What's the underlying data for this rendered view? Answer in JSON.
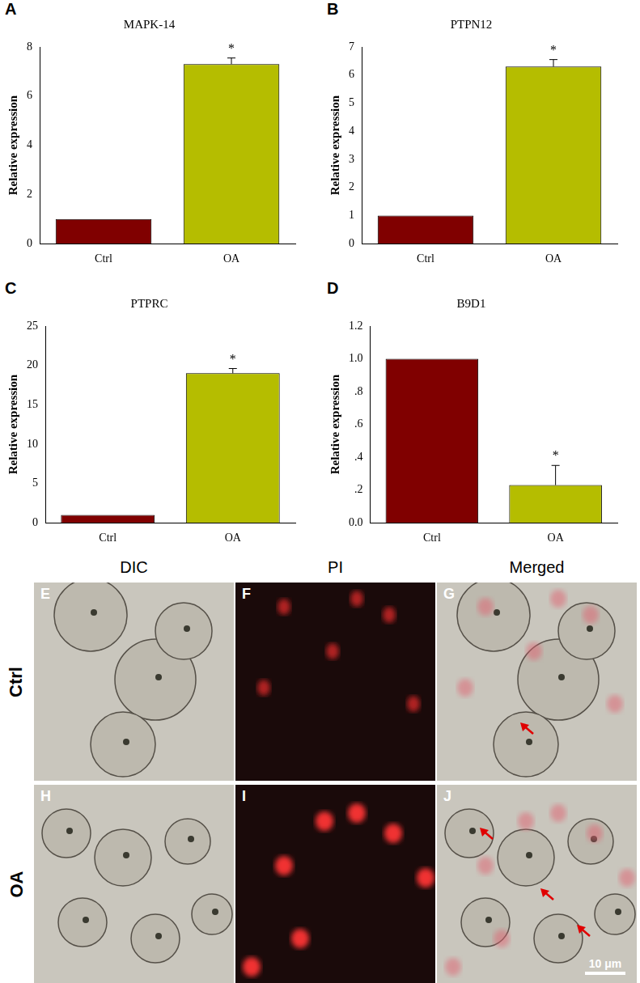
{
  "chart_data": [
    {
      "type": "bar",
      "panel": "A",
      "title": "MAPK-14",
      "y_label": "Relative expression",
      "categories": [
        "Ctrl",
        "OA"
      ],
      "values": [
        1,
        7.3
      ],
      "errors": [
        0,
        0.25
      ],
      "significance": [
        null,
        "*"
      ],
      "colors": [
        "#800000",
        "#b5bd00"
      ],
      "ylim": [
        0,
        8
      ],
      "yticks": [
        0,
        2,
        4,
        6,
        8
      ],
      "grid": false
    },
    {
      "type": "bar",
      "panel": "B",
      "title": "PTPN12",
      "y_label": "Relative expression",
      "categories": [
        "Ctrl",
        "OA"
      ],
      "values": [
        1,
        6.3
      ],
      "errors": [
        0,
        0.25
      ],
      "significance": [
        null,
        "*"
      ],
      "colors": [
        "#800000",
        "#b5bd00"
      ],
      "ylim": [
        0,
        7
      ],
      "yticks": [
        0,
        1,
        2,
        3,
        4,
        5,
        6,
        7
      ],
      "grid": false
    },
    {
      "type": "bar",
      "panel": "C",
      "title": "PTPRC",
      "y_label": "Relative expression",
      "categories": [
        "Ctrl",
        "OA"
      ],
      "values": [
        1,
        19
      ],
      "errors": [
        0,
        0.6
      ],
      "significance": [
        null,
        "*"
      ],
      "colors": [
        "#800000",
        "#b5bd00"
      ],
      "ylim": [
        0,
        25
      ],
      "yticks": [
        0,
        5,
        10,
        15,
        20,
        25
      ],
      "grid": false
    },
    {
      "type": "bar",
      "panel": "D",
      "title": "B9D1",
      "y_label": "Relative expression",
      "categories": [
        "Ctrl",
        "OA"
      ],
      "values": [
        1,
        0.23
      ],
      "errors": [
        0,
        0.12
      ],
      "significance": [
        null,
        "*"
      ],
      "colors": [
        "#800000",
        "#b5bd00"
      ],
      "ylim": [
        0,
        1.2
      ],
      "yticks": [
        {
          "value": 0,
          "label": "0.0"
        },
        {
          "value": 0.2,
          "label": ".2"
        },
        {
          "value": 0.4,
          "label": ".4"
        },
        {
          "value": 0.6,
          "label": ".6"
        },
        {
          "value": 0.8,
          "label": ".8"
        },
        {
          "value": 1,
          "label": "1.0"
        },
        1.2
      ],
      "grid": false
    }
  ],
  "image_panels": {
    "columns": [
      "DIC",
      "PI",
      "Merged"
    ],
    "rows": [
      {
        "label": "Ctrl",
        "panels": [
          "E",
          "F",
          "G"
        ]
      },
      {
        "label": "OA",
        "panels": [
          "H",
          "I",
          "J"
        ]
      }
    ],
    "scale_bar": "10 μm"
  }
}
